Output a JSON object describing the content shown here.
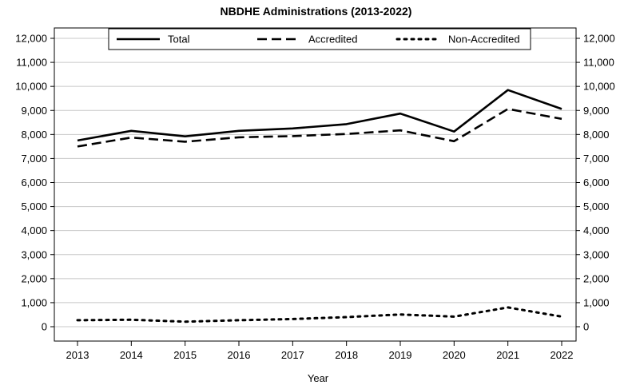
{
  "chart_data": {
    "type": "line",
    "title": "NBDHE Administrations (2013-2022)",
    "xlabel": "Year",
    "ylabel": "",
    "x": [
      "2013",
      "2014",
      "2015",
      "2016",
      "2017",
      "2018",
      "2019",
      "2020",
      "2021",
      "2022"
    ],
    "ylim": [
      0,
      12000
    ],
    "yticks": [
      0,
      1000,
      2000,
      3000,
      4000,
      5000,
      6000,
      7000,
      8000,
      9000,
      10000,
      11000,
      12000
    ],
    "ytick_labels": [
      "0",
      "1,000",
      "2,000",
      "3,000",
      "4,000",
      "5,000",
      "6,000",
      "7,000",
      "8,000",
      "9,000",
      "10,000",
      "11,000",
      "12,000"
    ],
    "secondary_y_axis": "mirror",
    "grid": "horizontal",
    "legend_position": "top",
    "series": [
      {
        "name": "Total",
        "style": "solid",
        "values": [
          7750,
          8150,
          7920,
          8150,
          8250,
          8430,
          8870,
          8120,
          9850,
          9060
        ]
      },
      {
        "name": "Accredited",
        "style": "dashed",
        "values": [
          7500,
          7870,
          7700,
          7880,
          7930,
          8020,
          8170,
          7720,
          9060,
          8650
        ]
      },
      {
        "name": "Non-Accredited",
        "style": "dotted",
        "values": [
          270,
          290,
          210,
          270,
          320,
          400,
          510,
          420,
          800,
          420
        ]
      }
    ]
  }
}
